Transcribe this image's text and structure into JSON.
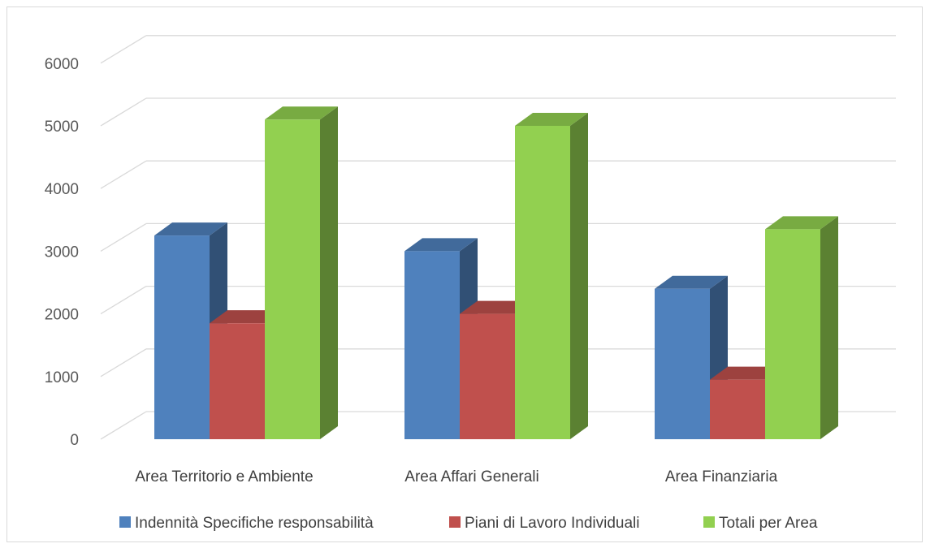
{
  "chart_data": {
    "type": "bar",
    "style": "3d-clustered-column",
    "categories": [
      "Area Territorio e Ambiente",
      "Area Affari Generali",
      "Area Finanziaria"
    ],
    "series": [
      {
        "name": "Indennità Specifiche responsabilità",
        "color": "#4f81bd",
        "values": [
          3250,
          3000,
          2400
        ]
      },
      {
        "name": "Piani di Lavoro Individuali",
        "color": "#c0504d",
        "values": [
          1850,
          2000,
          950
        ]
      },
      {
        "name": "Totali per Area",
        "color": "#92d050",
        "values": [
          5100,
          5000,
          3350
        ]
      }
    ],
    "yticks": [
      "0",
      "1000",
      "2000",
      "3000",
      "4000",
      "5000",
      "6000"
    ],
    "ylim": [
      0,
      6000
    ],
    "grid": true,
    "legend_position": "bottom"
  }
}
